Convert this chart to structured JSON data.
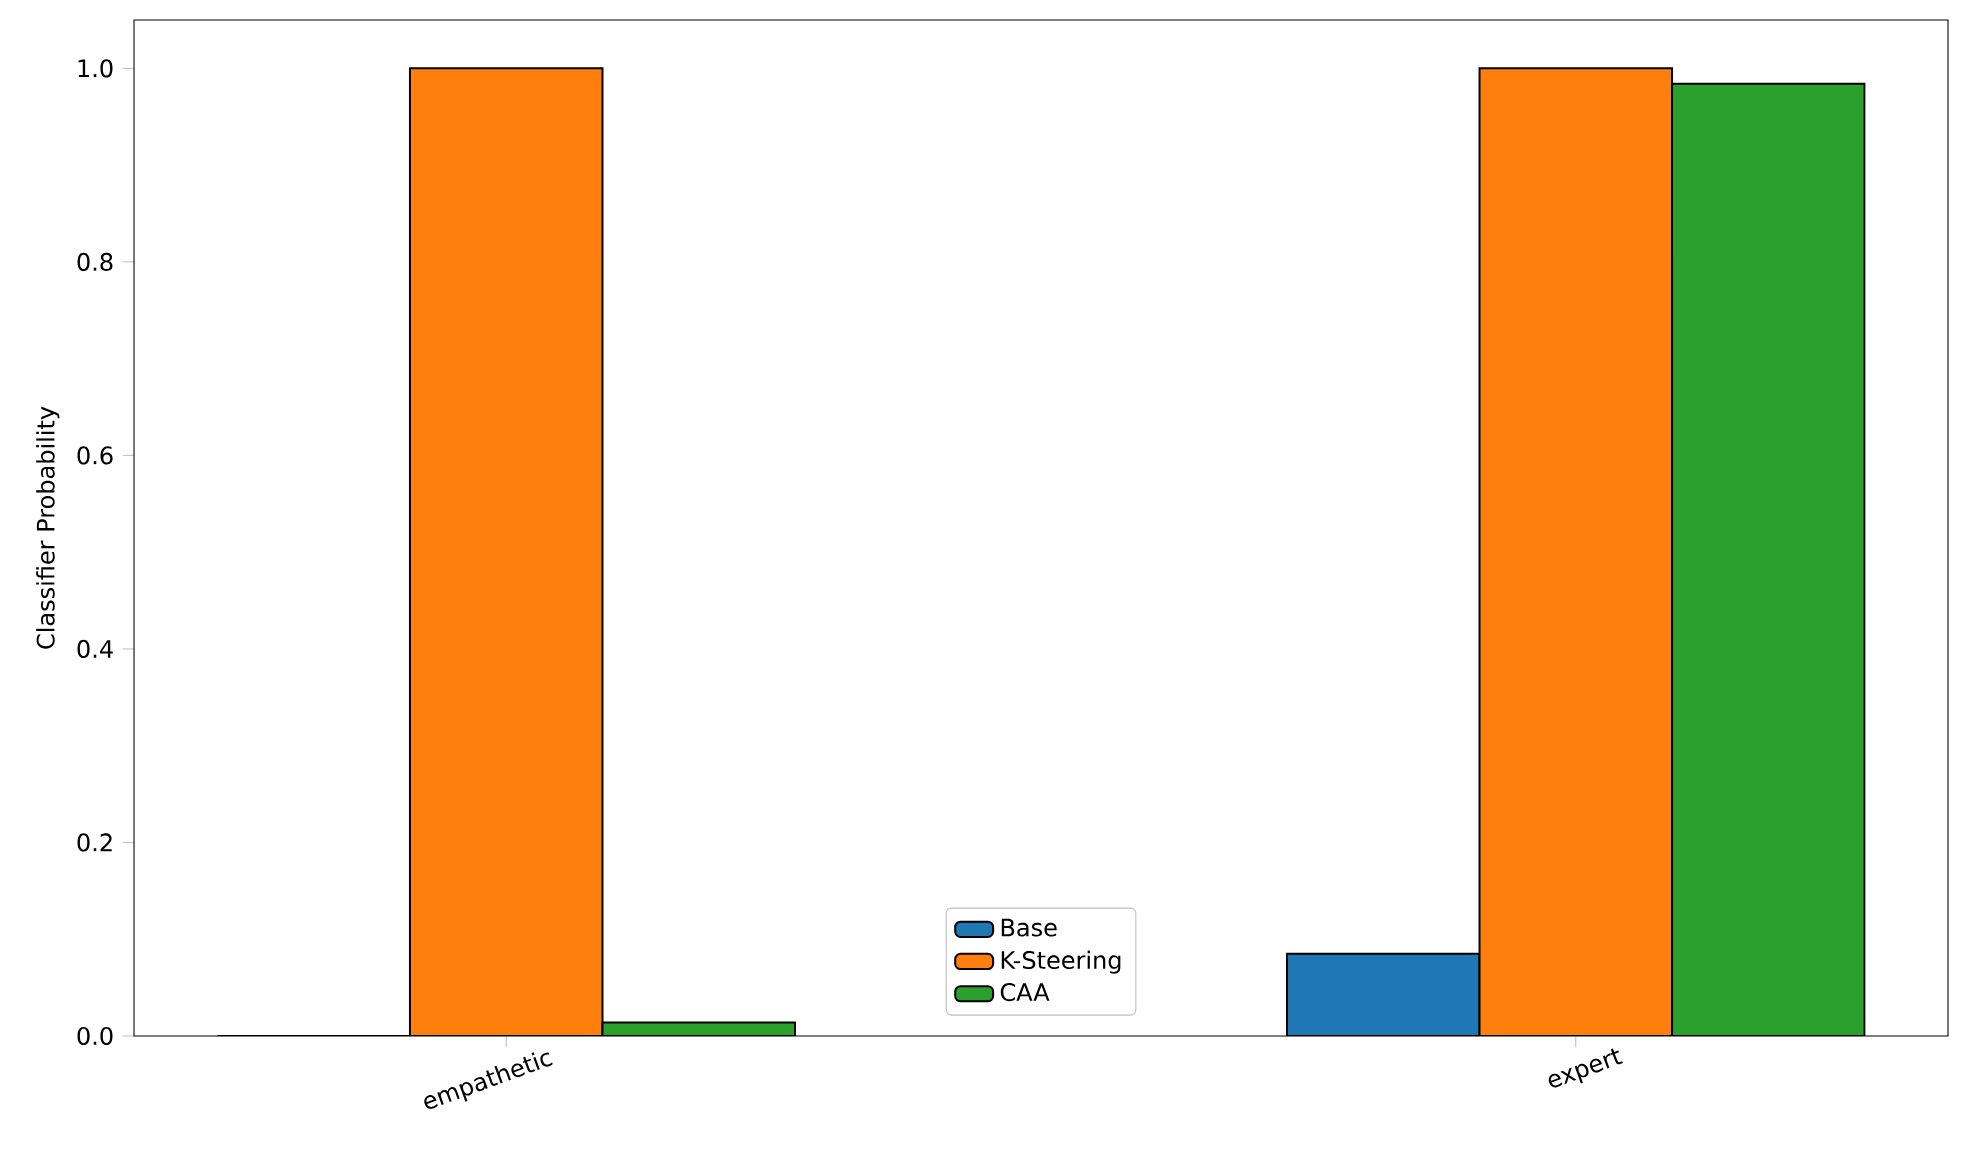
{
  "chart_data": {
    "type": "bar",
    "ylabel": "Classifier Probability",
    "categories": [
      "empathetic",
      "expert"
    ],
    "series": [
      {
        "name": "Base",
        "color": "#1f77b4",
        "values": [
          0,
          0.085
        ]
      },
      {
        "name": "K-Steering",
        "color": "#ff7f0e",
        "values": [
          1.0,
          1.0
        ]
      },
      {
        "name": "CAA",
        "color": "#2ca02c",
        "values": [
          0.014,
          0.984
        ]
      }
    ],
    "ylim": [
      0,
      1.05
    ],
    "yticks": [
      {
        "value": 0,
        "label": "0.0"
      },
      {
        "value": 0.2,
        "label": "0.2"
      },
      {
        "value": 0.4,
        "label": "0.4"
      },
      {
        "value": 0.6,
        "label": "0.6"
      },
      {
        "value": 0.8,
        "label": "0.8"
      },
      {
        "value": 1.0,
        "label": "1.0"
      }
    ],
    "legend": "bottom",
    "grid": false
  }
}
